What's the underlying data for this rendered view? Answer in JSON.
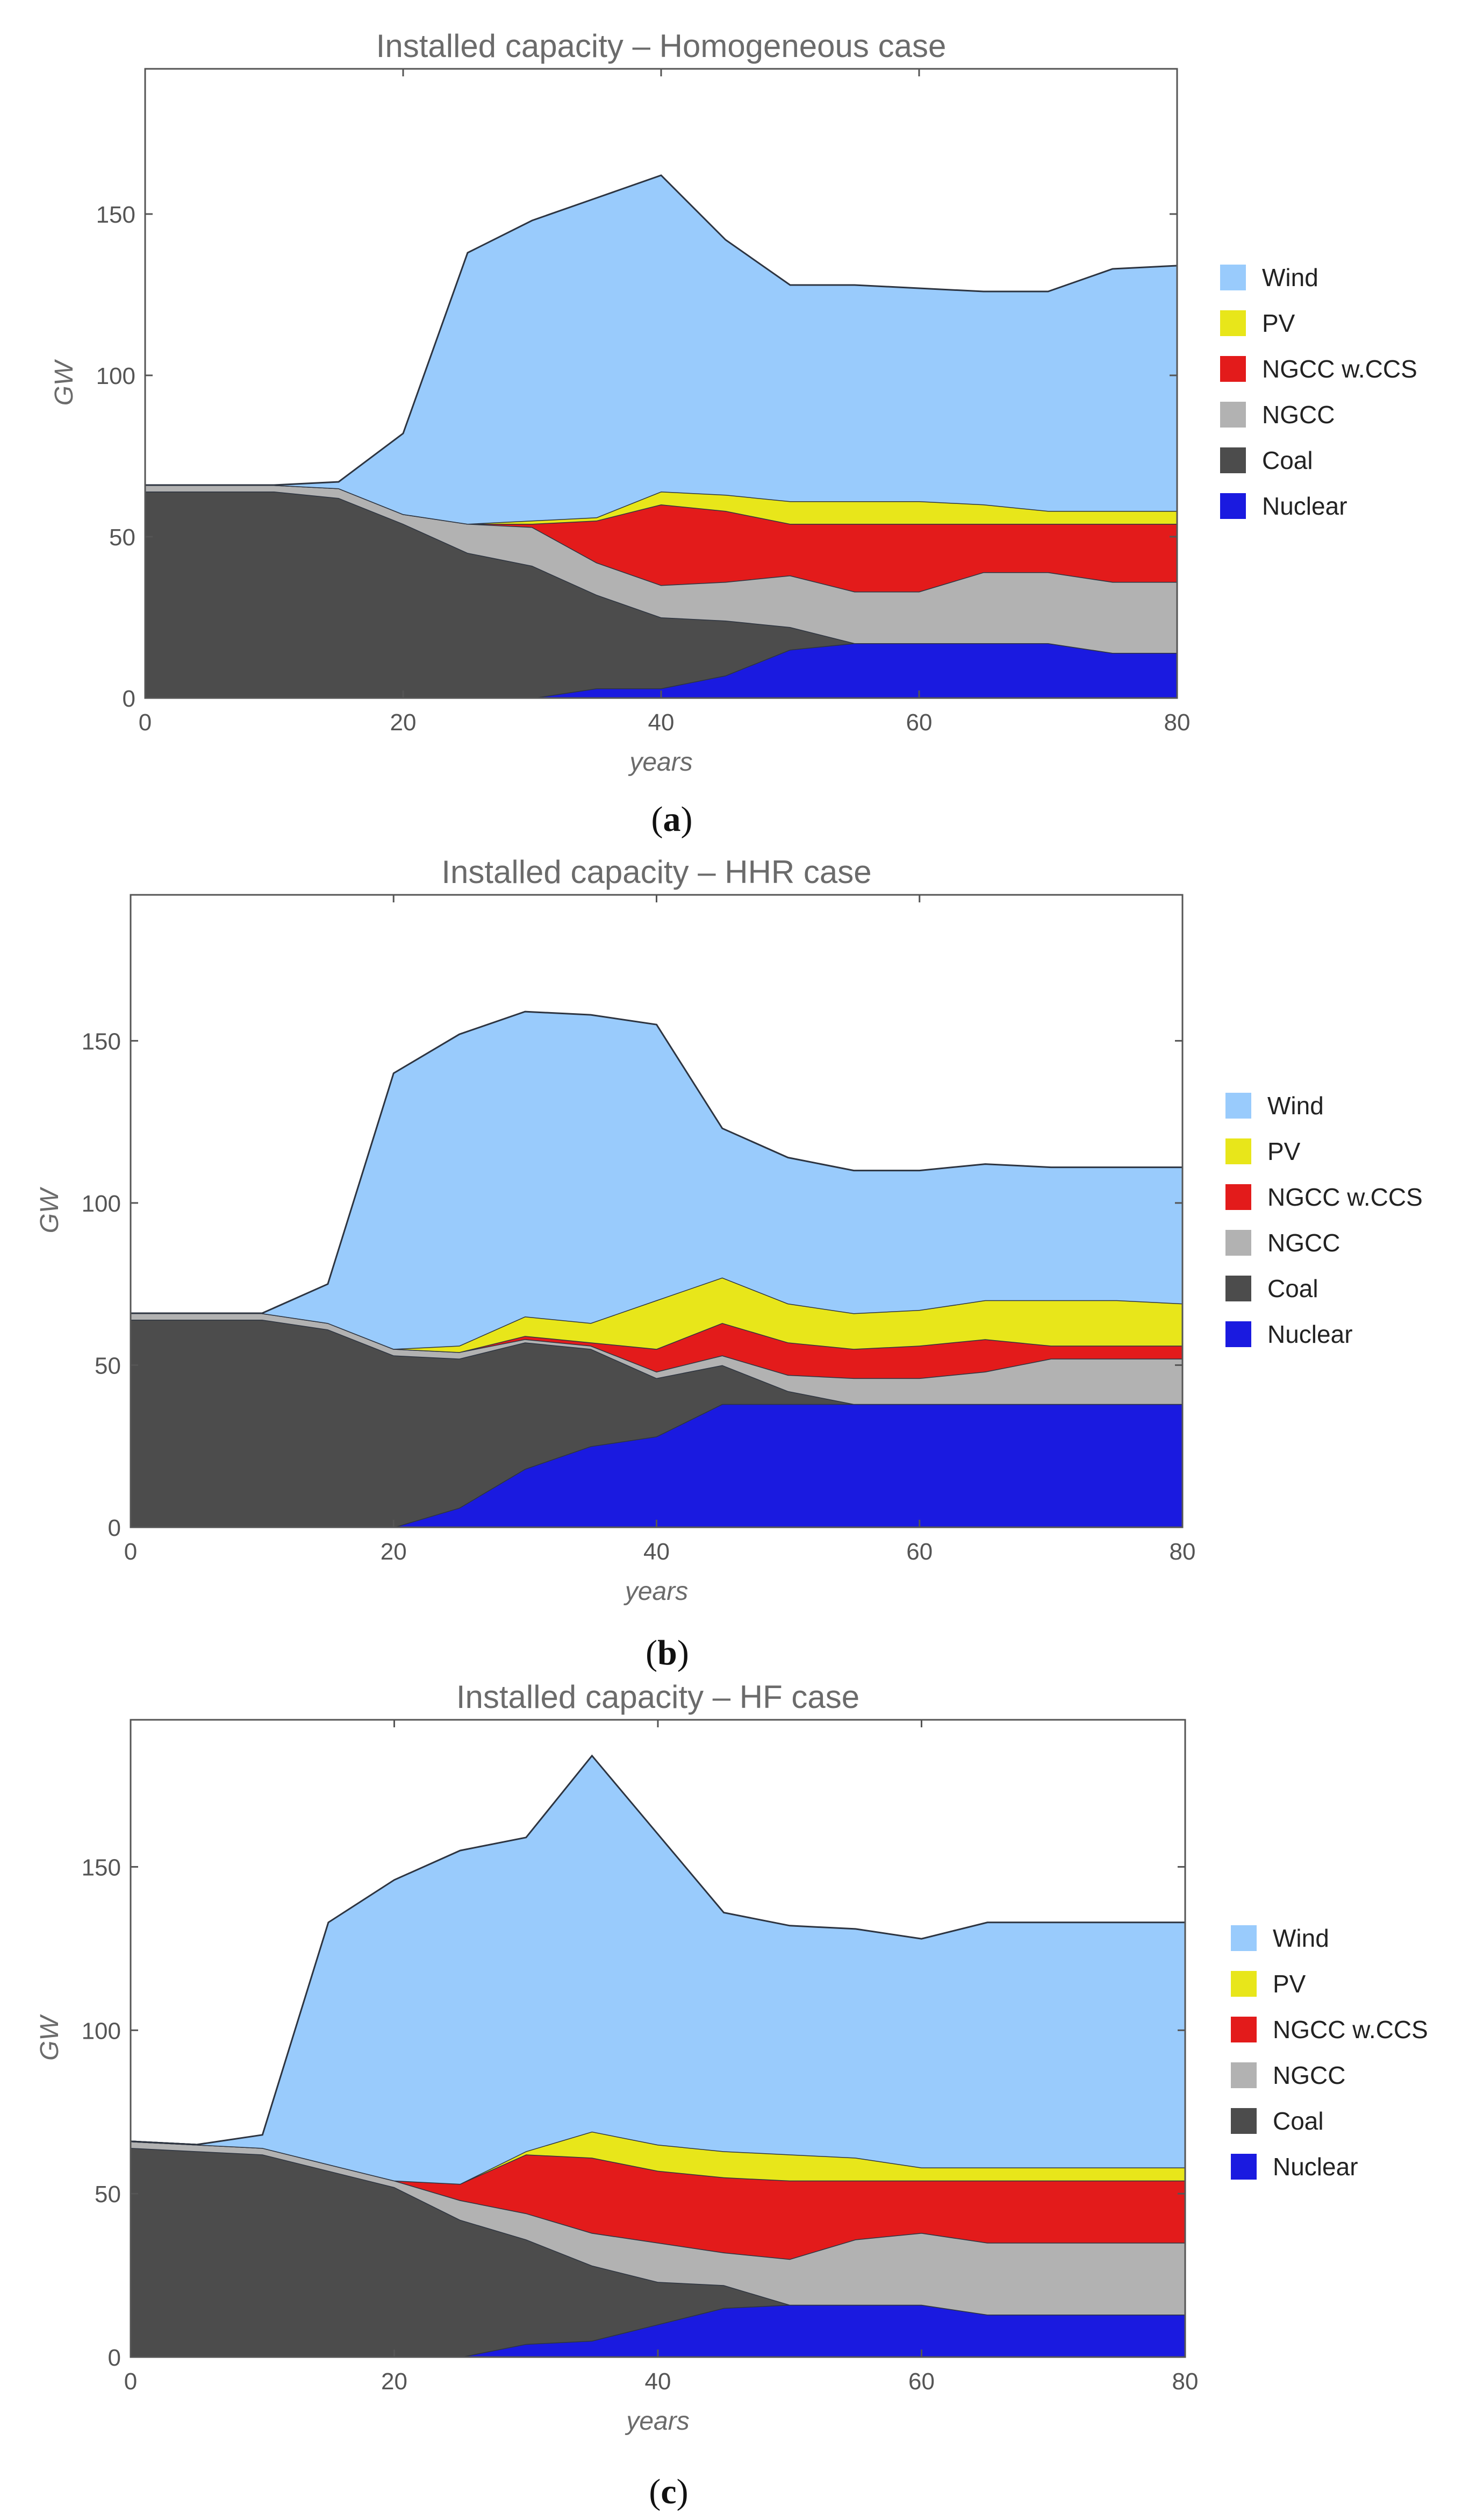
{
  "figure": {
    "captions": [
      "a",
      "b",
      "c"
    ]
  },
  "legend": [
    {
      "label": "Wind",
      "color": "#99cbfc"
    },
    {
      "label": "PV",
      "color": "#e8e61a"
    },
    {
      "label": "NGCC w.CCS",
      "color": "#e31b1b"
    },
    {
      "label": "NGCC",
      "color": "#b2b2b2"
    },
    {
      "label": "Coal",
      "color": "#4c4c4c"
    },
    {
      "label": "Nuclear",
      "color": "#1a1ae0"
    }
  ],
  "chart_data": [
    {
      "type": "area",
      "stacked": true,
      "title": "Installed capacity – Homogeneous case",
      "xlabel": "years",
      "ylabel": "GW",
      "xlim": [
        0,
        80
      ],
      "ylim": [
        0,
        195
      ],
      "xticks": [
        0,
        20,
        40,
        60,
        80
      ],
      "yticks": [
        0,
        50,
        100,
        150
      ],
      "x": [
        0,
        5,
        10,
        15,
        20,
        25,
        30,
        35,
        40,
        45,
        50,
        55,
        60,
        65,
        70,
        75,
        80
      ],
      "series": [
        {
          "name": "Nuclear",
          "color": "#1a1ae0",
          "values": [
            0,
            0,
            0,
            0,
            0,
            0,
            0,
            3,
            3,
            7,
            15,
            17,
            17,
            17,
            17,
            14,
            14
          ]
        },
        {
          "name": "Coal",
          "color": "#4c4c4c",
          "values": [
            64,
            64,
            64,
            62,
            54,
            45,
            41,
            29,
            22,
            17,
            7,
            0,
            0,
            0,
            0,
            0,
            0
          ]
        },
        {
          "name": "NGCC",
          "color": "#b2b2b2",
          "values": [
            2,
            2,
            2,
            3,
            3,
            9,
            12,
            10,
            10,
            12,
            16,
            16,
            16,
            22,
            22,
            22,
            22
          ]
        },
        {
          "name": "NGCC w.CCS",
          "color": "#e31b1b",
          "values": [
            0,
            0,
            0,
            0,
            0,
            0,
            1,
            13,
            25,
            22,
            16,
            21,
            21,
            15,
            15,
            18,
            18
          ]
        },
        {
          "name": "PV",
          "color": "#e8e61a",
          "values": [
            0,
            0,
            0,
            0,
            0,
            0,
            1,
            1,
            4,
            5,
            7,
            7,
            7,
            6,
            4,
            4,
            4
          ]
        },
        {
          "name": "Wind",
          "color": "#99cbfc",
          "values": [
            0,
            0,
            0,
            2,
            25,
            84,
            93,
            99,
            98,
            79,
            67,
            67,
            66,
            66,
            68,
            75,
            76
          ]
        }
      ]
    },
    {
      "type": "area",
      "stacked": true,
      "title": "Installed capacity – HHR case",
      "xlabel": "years",
      "ylabel": "GW",
      "xlim": [
        0,
        80
      ],
      "ylim": [
        0,
        195
      ],
      "xticks": [
        0,
        20,
        40,
        60,
        80
      ],
      "yticks": [
        0,
        50,
        100,
        150
      ],
      "x": [
        0,
        5,
        10,
        15,
        20,
        25,
        30,
        35,
        40,
        45,
        50,
        55,
        60,
        65,
        70,
        75,
        80
      ],
      "series": [
        {
          "name": "Nuclear",
          "color": "#1a1ae0",
          "values": [
            0,
            0,
            0,
            0,
            0,
            6,
            18,
            25,
            28,
            38,
            38,
            38,
            38,
            38,
            38,
            38,
            38
          ]
        },
        {
          "name": "Coal",
          "color": "#4c4c4c",
          "values": [
            64,
            64,
            64,
            61,
            53,
            46,
            39,
            30,
            18,
            12,
            4,
            0,
            0,
            0,
            0,
            0,
            0
          ]
        },
        {
          "name": "NGCC",
          "color": "#b2b2b2",
          "values": [
            2,
            2,
            2,
            2,
            2,
            2,
            1,
            1,
            2,
            3,
            5,
            8,
            8,
            10,
            14,
            14,
            14
          ]
        },
        {
          "name": "NGCC w.CCS",
          "color": "#e31b1b",
          "values": [
            0,
            0,
            0,
            0,
            0,
            0,
            1,
            1,
            7,
            10,
            10,
            9,
            10,
            10,
            4,
            4,
            4
          ]
        },
        {
          "name": "PV",
          "color": "#e8e61a",
          "values": [
            0,
            0,
            0,
            0,
            0,
            2,
            6,
            6,
            15,
            14,
            12,
            11,
            11,
            12,
            14,
            14,
            13
          ]
        },
        {
          "name": "Wind",
          "color": "#99cbfc",
          "values": [
            0,
            0,
            0,
            12,
            85,
            96,
            94,
            95,
            85,
            46,
            45,
            44,
            43,
            42,
            41,
            41,
            42
          ]
        }
      ]
    },
    {
      "type": "area",
      "stacked": true,
      "title": "Installed capacity – HF case",
      "xlabel": "years",
      "ylabel": "GW",
      "xlim": [
        0,
        80
      ],
      "ylim": [
        0,
        195
      ],
      "xticks": [
        0,
        20,
        40,
        60,
        80
      ],
      "yticks": [
        0,
        50,
        100,
        150
      ],
      "x": [
        0,
        5,
        10,
        15,
        20,
        25,
        30,
        35,
        40,
        45,
        50,
        55,
        60,
        65,
        70,
        75,
        80
      ],
      "series": [
        {
          "name": "Nuclear",
          "color": "#1a1ae0",
          "values": [
            0,
            0,
            0,
            0,
            0,
            0,
            4,
            5,
            10,
            15,
            16,
            16,
            16,
            13,
            13,
            13,
            13
          ]
        },
        {
          "name": "Coal",
          "color": "#4c4c4c",
          "values": [
            64,
            63,
            62,
            57,
            52,
            42,
            32,
            23,
            13,
            7,
            0,
            0,
            0,
            0,
            0,
            0,
            0
          ]
        },
        {
          "name": "NGCC",
          "color": "#b2b2b2",
          "values": [
            2,
            2,
            2,
            2,
            2,
            6,
            8,
            10,
            12,
            10,
            14,
            20,
            22,
            22,
            22,
            22,
            22
          ]
        },
        {
          "name": "NGCC w.CCS",
          "color": "#e31b1b",
          "values": [
            0,
            0,
            0,
            0,
            0,
            5,
            18,
            23,
            22,
            23,
            24,
            18,
            16,
            19,
            19,
            19,
            19
          ]
        },
        {
          "name": "PV",
          "color": "#e8e61a",
          "values": [
            0,
            0,
            0,
            0,
            0,
            0,
            1,
            8,
            8,
            8,
            8,
            7,
            4,
            4,
            4,
            4,
            4
          ]
        },
        {
          "name": "Wind",
          "color": "#99cbfc",
          "values": [
            0,
            0,
            4,
            74,
            92,
            102,
            96,
            115,
            95,
            73,
            70,
            70,
            70,
            75,
            75,
            75,
            75
          ]
        }
      ]
    }
  ]
}
